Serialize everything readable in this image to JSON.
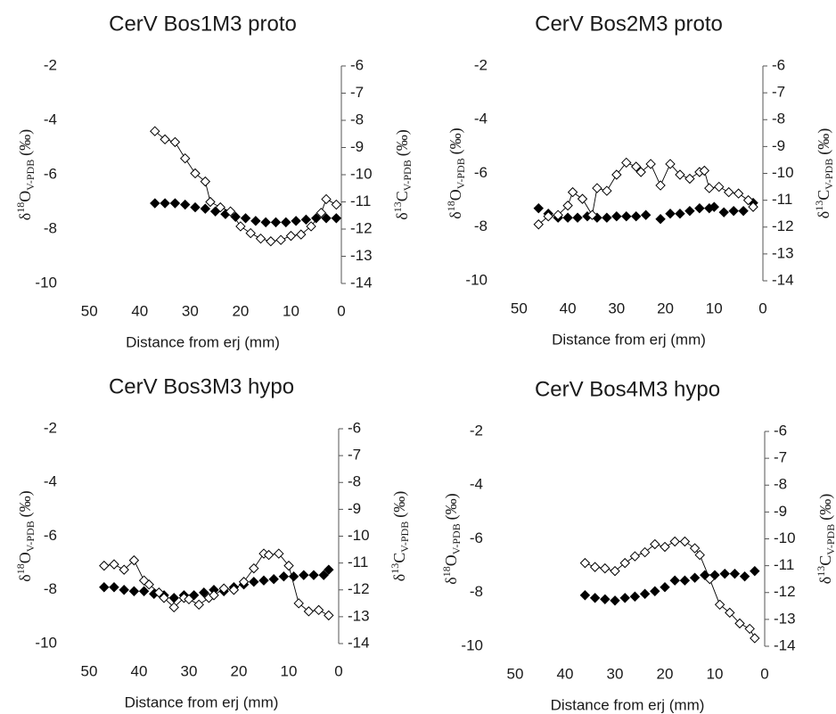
{
  "chart_data": [
    {
      "type": "scatter",
      "title": "CerV Bos1M3 proto",
      "xlabel": "Distance from erj (mm)",
      "ylabel": {
        "symbol": "δ",
        "isotope": "18",
        "element": "O",
        "standard": "V-PDB",
        "unit": "(‰)"
      },
      "y2label": {
        "symbol": "δ",
        "isotope": "13",
        "element": "C",
        "standard": "V-PDB",
        "unit": "(‰)"
      },
      "xlim": [
        55,
        0
      ],
      "xticks": [
        50,
        40,
        30,
        20,
        10,
        0
      ],
      "ylim": [
        -10,
        -2
      ],
      "yticks": [
        -2,
        -4,
        -6,
        -8,
        -10
      ],
      "y2lim": [
        -14,
        -6
      ],
      "y2ticks": [
        -6,
        -7,
        -8,
        -9,
        -10,
        -11,
        -12,
        -13,
        -14
      ],
      "series": [
        {
          "color": "#000000",
          "marker": "filled-diamond",
          "line": false,
          "x": [
            37,
            35,
            33,
            31,
            29,
            27,
            25,
            23,
            21,
            19,
            17,
            15,
            13,
            11,
            9,
            7,
            5,
            3,
            1
          ],
          "values": [
            -7.05,
            -7.05,
            -7.05,
            -7.1,
            -7.2,
            -7.25,
            -7.35,
            -7.45,
            -7.55,
            -7.6,
            -7.7,
            -7.75,
            -7.75,
            -7.75,
            -7.7,
            -7.65,
            -7.6,
            -7.6,
            -7.6
          ]
        },
        {
          "color": "#000000",
          "marker": "open-diamond",
          "line": true,
          "axis": "y2",
          "x": [
            37,
            35,
            33,
            31,
            29,
            27,
            26,
            24,
            22,
            20,
            18,
            16,
            14,
            12,
            10,
            8,
            6,
            4,
            3,
            1
          ],
          "values": [
            -8.4,
            -8.7,
            -8.8,
            -9.4,
            -9.95,
            -10.25,
            -11.0,
            -11.2,
            -11.35,
            -11.9,
            -12.15,
            -12.35,
            -12.45,
            -12.4,
            -12.25,
            -12.2,
            -11.9,
            -11.4,
            -10.9,
            -11.1
          ]
        }
      ]
    },
    {
      "type": "scatter",
      "title": "CerV Bos2M3 proto",
      "xlabel": "Distance from erj (mm)",
      "ylabel": {
        "symbol": "δ",
        "isotope": "18",
        "element": "O",
        "standard": "V-PDB",
        "unit": "(‰)"
      },
      "y2label": {
        "symbol": "δ",
        "isotope": "13",
        "element": "C",
        "standard": "V-PDB",
        "unit": "(‰)"
      },
      "xlim": [
        55,
        0
      ],
      "xticks": [
        50,
        40,
        30,
        20,
        10,
        0
      ],
      "ylim": [
        -10,
        -2
      ],
      "yticks": [
        -2,
        -4,
        -6,
        -8,
        -10
      ],
      "y2lim": [
        -14,
        -6
      ],
      "y2ticks": [
        -6,
        -7,
        -8,
        -9,
        -10,
        -11,
        -12,
        -13,
        -14
      ],
      "series": [
        {
          "color": "#000000",
          "marker": "filled-diamond",
          "line": false,
          "x": [
            46,
            44,
            42,
            40,
            38,
            36,
            34,
            32,
            30,
            28,
            26,
            24,
            21,
            19,
            17,
            15,
            13,
            11,
            10,
            8,
            6,
            4,
            2
          ],
          "values": [
            -7.3,
            -7.5,
            -7.65,
            -7.65,
            -7.65,
            -7.6,
            -7.65,
            -7.65,
            -7.6,
            -7.6,
            -7.6,
            -7.55,
            -7.7,
            -7.5,
            -7.5,
            -7.4,
            -7.3,
            -7.3,
            -7.25,
            -7.45,
            -7.4,
            -7.4,
            -7.1
          ]
        },
        {
          "color": "#000000",
          "marker": "open-diamond",
          "line": true,
          "axis": "y2",
          "x": [
            46,
            44,
            42,
            40,
            39,
            37,
            35,
            34,
            32,
            30,
            28,
            26,
            25,
            23,
            21,
            19,
            17,
            15,
            13,
            12,
            11,
            9,
            7,
            5,
            3,
            2
          ],
          "values": [
            -11.9,
            -11.6,
            -11.55,
            -11.2,
            -10.7,
            -10.95,
            -11.55,
            -10.55,
            -10.65,
            -10.05,
            -9.6,
            -9.75,
            -9.95,
            -9.65,
            -10.45,
            -9.65,
            -10.05,
            -10.2,
            -9.95,
            -9.9,
            -10.55,
            -10.5,
            -10.7,
            -10.75,
            -11.0,
            -11.25
          ]
        }
      ]
    },
    {
      "type": "scatter",
      "title": "CerV Bos3M3 hypo",
      "xlabel": "Distance from erj (mm)",
      "ylabel": {
        "symbol": "δ",
        "isotope": "18",
        "element": "O",
        "standard": "V-PDB",
        "unit": "(‰)"
      },
      "y2label": {
        "symbol": "δ",
        "isotope": "13",
        "element": "C",
        "standard": "V-PDB",
        "unit": "(‰)"
      },
      "xlim": [
        55,
        0
      ],
      "xticks": [
        50,
        40,
        30,
        20,
        10,
        0
      ],
      "ylim": [
        -10,
        -2
      ],
      "yticks": [
        -2,
        -4,
        -6,
        -8,
        -10
      ],
      "y2lim": [
        -14,
        -6
      ],
      "y2ticks": [
        -6,
        -7,
        -8,
        -9,
        -10,
        -11,
        -12,
        -13,
        -14
      ],
      "series": [
        {
          "color": "#000000",
          "marker": "filled-diamond",
          "line": false,
          "x": [
            47,
            45,
            43,
            41,
            39,
            37,
            35,
            33,
            31,
            29,
            27,
            25,
            23,
            21,
            19,
            17,
            15,
            13,
            11,
            9,
            7,
            5,
            3,
            2
          ],
          "values": [
            -7.9,
            -7.9,
            -8.0,
            -8.05,
            -8.05,
            -8.15,
            -8.2,
            -8.3,
            -8.2,
            -8.2,
            -8.1,
            -8.0,
            -8.05,
            -7.9,
            -7.8,
            -7.7,
            -7.65,
            -7.6,
            -7.5,
            -7.5,
            -7.45,
            -7.45,
            -7.45,
            -7.25
          ]
        },
        {
          "color": "#000000",
          "marker": "open-diamond",
          "line": true,
          "axis": "y2",
          "x": [
            47,
            45,
            43,
            41,
            39,
            38,
            36,
            35,
            33,
            31,
            30,
            28,
            26,
            25,
            23,
            21,
            19,
            17,
            15,
            14,
            12,
            10,
            8,
            6,
            4,
            2
          ],
          "values": [
            -11.1,
            -11.05,
            -11.25,
            -10.9,
            -11.65,
            -11.8,
            -12.1,
            -12.3,
            -12.65,
            -12.3,
            -12.35,
            -12.55,
            -12.3,
            -12.2,
            -11.95,
            -12.0,
            -11.7,
            -11.2,
            -10.65,
            -10.7,
            -10.65,
            -11.1,
            -12.5,
            -12.8,
            -12.75,
            -12.95
          ]
        }
      ]
    },
    {
      "type": "scatter",
      "title": "CerV Bos4M3 hypo",
      "xlabel": "Distance from erj (mm)",
      "ylabel": {
        "symbol": "δ",
        "isotope": "18",
        "element": "O",
        "standard": "V-PDB",
        "unit": "(‰)"
      },
      "y2label": {
        "symbol": "δ",
        "isotope": "13",
        "element": "C",
        "standard": "V-PDB",
        "unit": "(‰)"
      },
      "xlim": [
        55,
        0
      ],
      "xticks": [
        50,
        40,
        30,
        20,
        10,
        0
      ],
      "ylim": [
        -10,
        -2
      ],
      "yticks": [
        -2,
        -4,
        -6,
        -8,
        -10
      ],
      "y2lim": [
        -14,
        -6
      ],
      "y2ticks": [
        -6,
        -7,
        -8,
        -9,
        -10,
        -11,
        -12,
        -13,
        -14
      ],
      "series": [
        {
          "color": "#000000",
          "marker": "filled-diamond",
          "line": false,
          "x": [
            36,
            34,
            32,
            30,
            28,
            26,
            24,
            22,
            20,
            18,
            16,
            14,
            12,
            10,
            8,
            6,
            4,
            2
          ],
          "values": [
            -8.1,
            -8.2,
            -8.25,
            -8.3,
            -8.2,
            -8.15,
            -8.05,
            -7.95,
            -7.8,
            -7.55,
            -7.55,
            -7.45,
            -7.35,
            -7.35,
            -7.3,
            -7.3,
            -7.4,
            -7.2
          ]
        },
        {
          "color": "#000000",
          "marker": "open-diamond",
          "line": true,
          "axis": "y2",
          "x": [
            36,
            34,
            32,
            30,
            28,
            26,
            24,
            22,
            20,
            18,
            16,
            14,
            13,
            11,
            9,
            7,
            5,
            3,
            2
          ],
          "values": [
            -10.9,
            -11.05,
            -11.1,
            -11.2,
            -10.9,
            -10.65,
            -10.5,
            -10.2,
            -10.3,
            -10.1,
            -10.1,
            -10.35,
            -10.6,
            -11.5,
            -12.45,
            -12.75,
            -13.15,
            -13.35,
            -13.7
          ]
        }
      ]
    }
  ]
}
